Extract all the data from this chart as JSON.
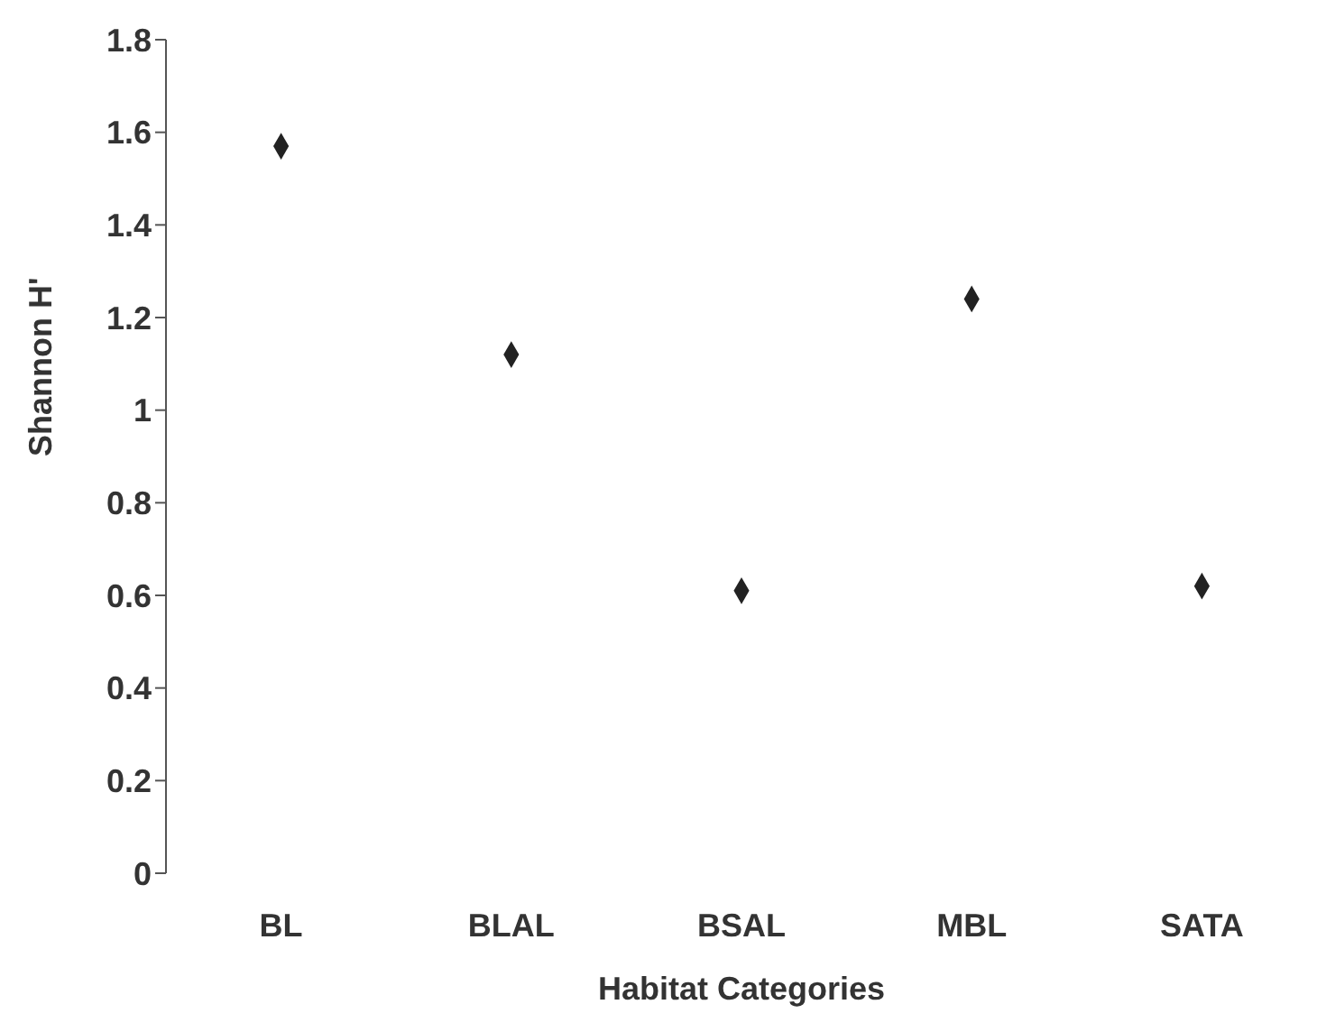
{
  "chart_data": {
    "type": "scatter",
    "xlabel": "Habitat Categories",
    "ylabel": "Shannon H'",
    "categories": [
      "BL",
      "BLAL",
      "BSAL",
      "MBL",
      "SATA"
    ],
    "series": [
      {
        "color": "#222222",
        "values": [
          1.57,
          1.12,
          0.61,
          1.24,
          0.62
        ]
      }
    ],
    "ylim": [
      0,
      1.8
    ],
    "yticks": [
      0,
      0.2,
      0.4,
      0.6,
      0.8,
      1,
      1.2,
      1.4,
      1.6,
      1.8
    ],
    "marker": "diamond",
    "grid": false
  }
}
